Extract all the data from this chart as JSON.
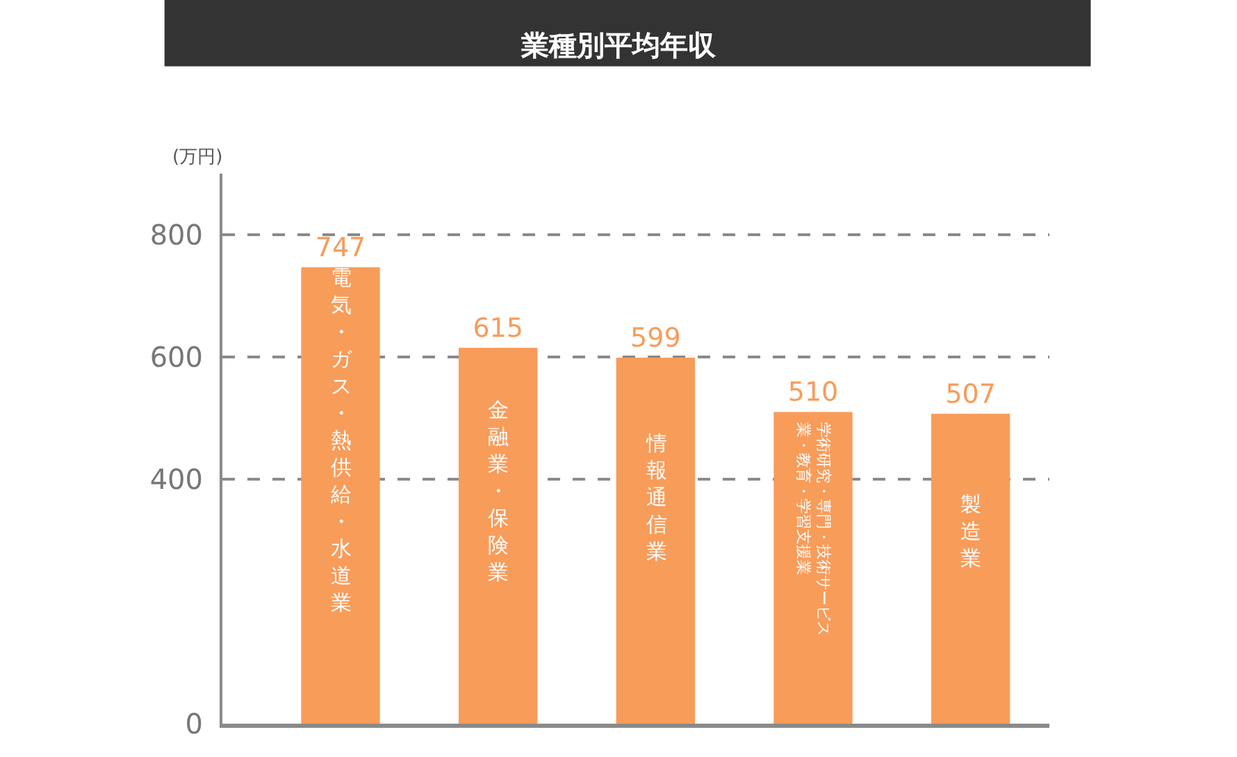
{
  "chart_data": {
    "type": "bar",
    "title": "業種別平均年収",
    "ylabel": "(万円)",
    "categories": [
      "電気・ガス・熱供給・水道業",
      "金融業・保険業",
      "情報通信業",
      "学術研究・専門・技術サービス業・教育・学習支援業",
      "製造業"
    ],
    "values": [
      747,
      615,
      599,
      510,
      507
    ],
    "color": "#f89c5a",
    "ylim": [
      0,
      900
    ],
    "yticks": [
      0,
      400,
      600,
      800
    ],
    "grid": "y",
    "data_labels": true,
    "tick_labels": "y",
    "legend": false
  }
}
